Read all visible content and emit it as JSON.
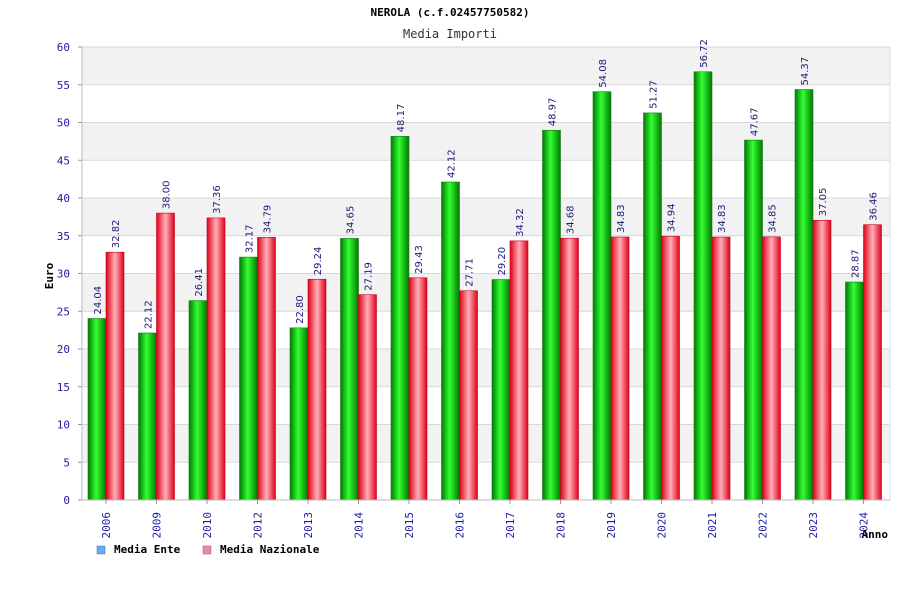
{
  "chart_data": {
    "type": "bar",
    "title": "NEROLA (c.f.02457750582)",
    "subtitle": "Media Importi",
    "xlabel": "Anno",
    "ylabel": "Euro",
    "ylim": [
      0,
      60
    ],
    "yticks": [
      0,
      5,
      10,
      15,
      20,
      25,
      30,
      35,
      40,
      45,
      50,
      55,
      60
    ],
    "categories": [
      "2006",
      "2009",
      "2010",
      "2012",
      "2013",
      "2014",
      "2015",
      "2016",
      "2017",
      "2018",
      "2019",
      "2020",
      "2021",
      "2022",
      "2023",
      "2024"
    ],
    "series": [
      {
        "name": "Media Ente",
        "values": [
          24.04,
          22.12,
          26.41,
          32.17,
          22.8,
          34.65,
          48.17,
          42.12,
          29.2,
          48.97,
          54.08,
          51.27,
          56.72,
          47.67,
          54.37,
          28.87
        ],
        "labels": [
          "24.04",
          "22.12",
          "26.41",
          "32.17",
          "22.80",
          "34.65",
          "48.17",
          "42.12",
          "29.20",
          "48.97",
          "54.08",
          "51.27",
          "56.72",
          "47.67",
          "54.37",
          "28.87"
        ]
      },
      {
        "name": "Media Nazionale",
        "values": [
          32.82,
          38.0,
          37.36,
          34.79,
          29.24,
          27.19,
          29.43,
          27.71,
          34.32,
          34.68,
          34.83,
          34.94,
          34.83,
          34.85,
          37.05,
          36.46
        ],
        "labels": [
          "32.82",
          "38.00",
          "37.36",
          "34.79",
          "29.24",
          "27.19",
          "29.43",
          "27.71",
          "34.32",
          "34.68",
          "34.83",
          "34.94",
          "34.83",
          "34.85",
          "37.05",
          "36.46"
        ]
      }
    ],
    "legend_position": "bottom-left",
    "grid": true
  },
  "colors": {
    "ente_swatch": "#6aaef0",
    "nazionale_swatch": "#e58aa8",
    "ente_dark": "#007a00",
    "ente_light": "#33ff33",
    "naz_dark": "#e0001a",
    "naz_light": "#ffb0b8",
    "band": "#f2f2f2",
    "grid": "#d8d8d8"
  }
}
